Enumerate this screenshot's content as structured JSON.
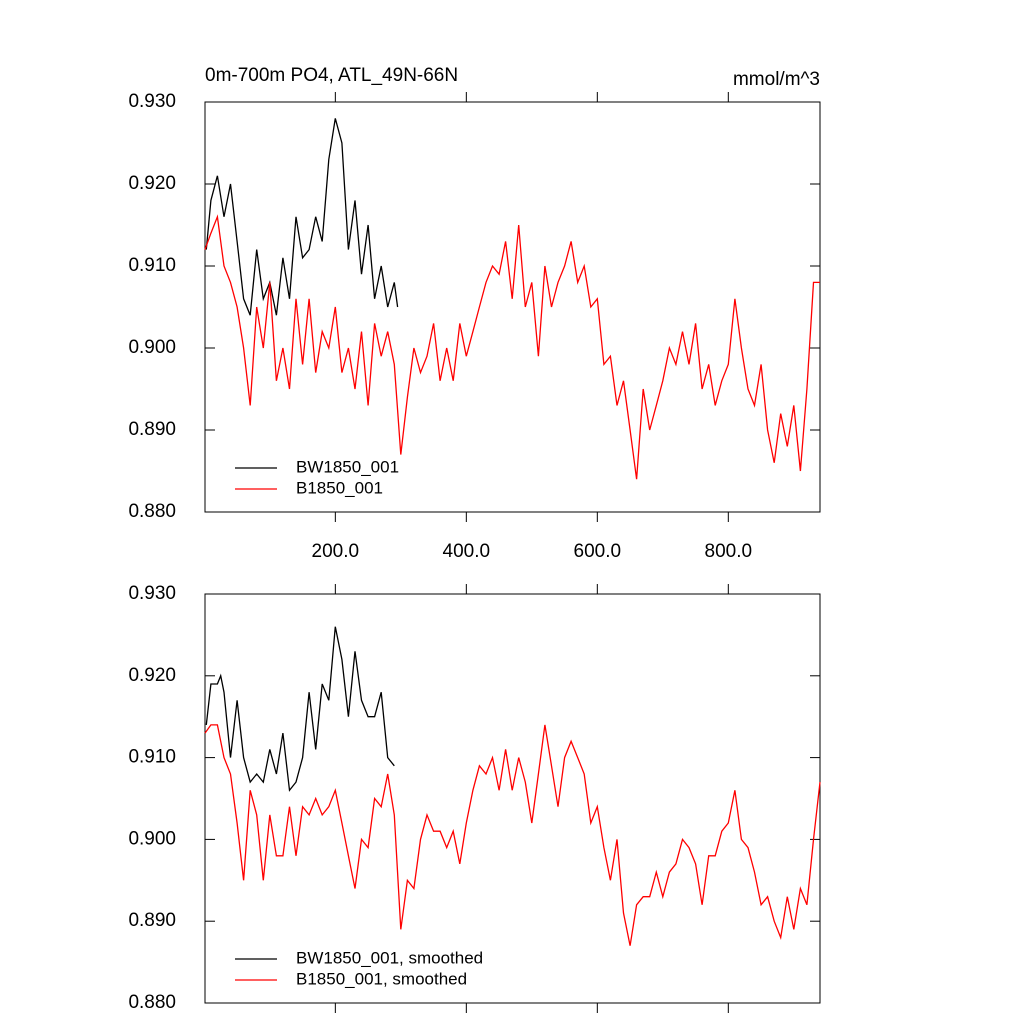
{
  "chart_data": [
    {
      "type": "line",
      "title": "0m-700m PO4, ATL_49N-66N",
      "title_right": "mmol/m^3",
      "xlim": [
        1,
        940
      ],
      "ylim": [
        0.88,
        0.93
      ],
      "xticks": [
        {
          "value": 200,
          "label": "200.0"
        },
        {
          "value": 400,
          "label": "400.0"
        },
        {
          "value": 600,
          "label": "600.0"
        },
        {
          "value": 800,
          "label": "800.0"
        }
      ],
      "yticks": [
        {
          "value": 0.88,
          "label": "0.880"
        },
        {
          "value": 0.89,
          "label": "0.890"
        },
        {
          "value": 0.9,
          "label": "0.900"
        },
        {
          "value": 0.91,
          "label": "0.910"
        },
        {
          "value": 0.92,
          "label": "0.920"
        },
        {
          "value": 0.93,
          "label": "0.930"
        }
      ],
      "legend": "lower left",
      "series": [
        {
          "name": "BW1850_001",
          "color": "#000000",
          "x": [
            3,
            10,
            20,
            30,
            40,
            50,
            60,
            70,
            80,
            90,
            100,
            110,
            120,
            130,
            140,
            150,
            160,
            170,
            180,
            190,
            200,
            210,
            220,
            230,
            240,
            250,
            260,
            270,
            280,
            290,
            295
          ],
          "values": [
            0.912,
            0.918,
            0.921,
            0.916,
            0.92,
            0.913,
            0.906,
            0.904,
            0.912,
            0.906,
            0.908,
            0.904,
            0.911,
            0.906,
            0.916,
            0.911,
            0.912,
            0.916,
            0.913,
            0.923,
            0.928,
            0.925,
            0.912,
            0.918,
            0.909,
            0.915,
            0.906,
            0.91,
            0.905,
            0.908,
            0.905
          ]
        },
        {
          "name": "B1850_001",
          "color": "#ff0000",
          "x": [
            1,
            10,
            20,
            30,
            40,
            50,
            60,
            70,
            80,
            90,
            100,
            110,
            120,
            130,
            140,
            150,
            160,
            170,
            180,
            190,
            200,
            210,
            220,
            230,
            240,
            250,
            260,
            270,
            280,
            290,
            300,
            310,
            320,
            330,
            340,
            350,
            360,
            370,
            380,
            390,
            400,
            410,
            420,
            430,
            440,
            450,
            460,
            470,
            480,
            490,
            500,
            510,
            520,
            530,
            540,
            550,
            560,
            570,
            580,
            590,
            600,
            610,
            620,
            630,
            640,
            650,
            660,
            670,
            680,
            690,
            700,
            710,
            720,
            730,
            740,
            750,
            760,
            770,
            780,
            790,
            800,
            810,
            820,
            830,
            840,
            850,
            860,
            870,
            880,
            890,
            900,
            910,
            920,
            930,
            940
          ],
          "values": [
            0.912,
            0.914,
            0.916,
            0.91,
            0.908,
            0.905,
            0.9,
            0.893,
            0.905,
            0.9,
            0.908,
            0.896,
            0.9,
            0.895,
            0.906,
            0.898,
            0.906,
            0.897,
            0.902,
            0.9,
            0.905,
            0.897,
            0.9,
            0.895,
            0.902,
            0.893,
            0.903,
            0.899,
            0.902,
            0.898,
            0.887,
            0.894,
            0.9,
            0.897,
            0.899,
            0.903,
            0.896,
            0.9,
            0.896,
            0.903,
            0.899,
            0.902,
            0.905,
            0.908,
            0.91,
            0.909,
            0.913,
            0.906,
            0.915,
            0.905,
            0.908,
            0.899,
            0.91,
            0.905,
            0.908,
            0.91,
            0.913,
            0.908,
            0.91,
            0.905,
            0.906,
            0.898,
            0.899,
            0.893,
            0.896,
            0.89,
            0.884,
            0.895,
            0.89,
            0.893,
            0.896,
            0.9,
            0.898,
            0.902,
            0.898,
            0.903,
            0.895,
            0.898,
            0.893,
            0.896,
            0.898,
            0.906,
            0.9,
            0.895,
            0.893,
            0.898,
            0.89,
            0.886,
            0.892,
            0.888,
            0.893,
            0.885,
            0.895,
            0.908,
            0.908
          ]
        }
      ]
    },
    {
      "type": "line",
      "xlim": [
        1,
        940
      ],
      "ylim": [
        0.88,
        0.93
      ],
      "xticks": [
        200,
        400,
        600,
        800
      ],
      "yticks": [
        {
          "value": 0.88,
          "label": "0.880"
        },
        {
          "value": 0.89,
          "label": "0.890"
        },
        {
          "value": 0.9,
          "label": "0.900"
        },
        {
          "value": 0.91,
          "label": "0.910"
        },
        {
          "value": 0.92,
          "label": "0.920"
        },
        {
          "value": 0.93,
          "label": "0.930"
        }
      ],
      "legend": "lower left",
      "series": [
        {
          "name": "BW1850_001, smoothed",
          "color": "#000000",
          "x": [
            3,
            10,
            20,
            25,
            30,
            40,
            50,
            60,
            70,
            80,
            90,
            100,
            110,
            120,
            130,
            140,
            150,
            160,
            170,
            180,
            190,
            200,
            210,
            220,
            230,
            240,
            250,
            260,
            270,
            280,
            290
          ],
          "values": [
            0.914,
            0.919,
            0.919,
            0.92,
            0.918,
            0.91,
            0.917,
            0.91,
            0.907,
            0.908,
            0.907,
            0.911,
            0.908,
            0.913,
            0.906,
            0.907,
            0.91,
            0.918,
            0.911,
            0.919,
            0.917,
            0.926,
            0.922,
            0.915,
            0.923,
            0.917,
            0.915,
            0.915,
            0.918,
            0.91,
            0.909
          ]
        },
        {
          "name": "B1850_001, smoothed",
          "color": "#ff0000",
          "x": [
            1,
            10,
            20,
            30,
            40,
            50,
            60,
            70,
            80,
            90,
            100,
            110,
            120,
            130,
            140,
            150,
            160,
            170,
            180,
            190,
            200,
            210,
            220,
            230,
            240,
            250,
            260,
            270,
            280,
            290,
            300,
            310,
            320,
            330,
            340,
            350,
            360,
            370,
            380,
            390,
            400,
            410,
            420,
            430,
            440,
            450,
            460,
            470,
            480,
            490,
            500,
            510,
            520,
            530,
            540,
            550,
            560,
            570,
            580,
            590,
            600,
            610,
            620,
            630,
            640,
            650,
            660,
            670,
            680,
            690,
            700,
            710,
            720,
            730,
            740,
            750,
            760,
            770,
            780,
            790,
            800,
            810,
            820,
            830,
            840,
            850,
            860,
            870,
            880,
            890,
            900,
            910,
            920,
            930,
            940
          ],
          "values": [
            0.913,
            0.914,
            0.914,
            0.91,
            0.908,
            0.902,
            0.895,
            0.906,
            0.903,
            0.895,
            0.903,
            0.898,
            0.898,
            0.904,
            0.898,
            0.904,
            0.903,
            0.905,
            0.903,
            0.904,
            0.906,
            0.902,
            0.898,
            0.894,
            0.9,
            0.899,
            0.905,
            0.904,
            0.908,
            0.903,
            0.889,
            0.895,
            0.894,
            0.9,
            0.903,
            0.901,
            0.901,
            0.899,
            0.901,
            0.897,
            0.902,
            0.906,
            0.909,
            0.908,
            0.91,
            0.906,
            0.911,
            0.906,
            0.91,
            0.907,
            0.902,
            0.908,
            0.914,
            0.909,
            0.904,
            0.91,
            0.912,
            0.91,
            0.908,
            0.902,
            0.904,
            0.899,
            0.895,
            0.9,
            0.891,
            0.887,
            0.892,
            0.893,
            0.893,
            0.896,
            0.893,
            0.896,
            0.897,
            0.9,
            0.899,
            0.897,
            0.892,
            0.898,
            0.898,
            0.901,
            0.902,
            0.906,
            0.9,
            0.899,
            0.896,
            0.892,
            0.893,
            0.89,
            0.888,
            0.893,
            0.889,
            0.894,
            0.892,
            0.9,
            0.907
          ]
        }
      ]
    }
  ]
}
